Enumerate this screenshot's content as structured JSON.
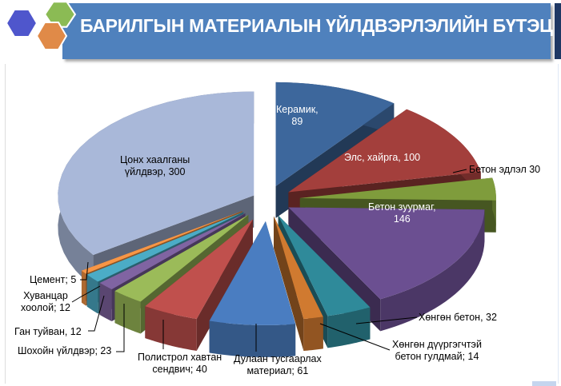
{
  "header": {
    "title": "БАРИЛГЫН МАТЕРИАЛЫН ҮЙЛДВЭРЛЭЛИЙН БҮТЭЦ"
  },
  "chart_data": {
    "type": "pie",
    "style": "3d-exploded",
    "title": "",
    "slices": [
      {
        "name": "Керамик",
        "value": 89,
        "label": "Керамик,",
        "value_label": "89",
        "color": "#3d679c"
      },
      {
        "name": "Элс, хайрга",
        "value": 100,
        "label": "Элс, хайрга, 100",
        "color": "#a33f3c"
      },
      {
        "name": "Бетон эдлэл",
        "value": 30,
        "label": "Бетон эдлэл 30",
        "color": "#7f9c3c"
      },
      {
        "name": "Бетон зуурмаг",
        "value": 146,
        "label": "Бетон зуурмаг,",
        "value_label": "146",
        "color": "#6b4f91"
      },
      {
        "name": "Хөнгөн бетон",
        "value": 32,
        "label": "Хөнгөн бетон, 32",
        "color": "#2f8a9a"
      },
      {
        "name": "Хөнгөн дүүргэгчтэй бетон гулдмай",
        "value": 14,
        "label": "Хөнгөн дүүргэгчтэй",
        "value_label": "бетон гулдмай; 14",
        "color": "#d07a30"
      },
      {
        "name": "Дулаан тусгаарлах материал",
        "value": 61,
        "label": "Дулаан тусгаарлах",
        "value_label": "материал; 61",
        "color": "#4a7dc1"
      },
      {
        "name": "Полистрол хавтан сендвич",
        "value": 40,
        "label": "Полистрол хавтан",
        "value_label": "сендвич; 40",
        "color": "#c0504d"
      },
      {
        "name": "Шохойн үйлдвэр",
        "value": 23,
        "label": "Шохойн үйлдвэр; 23",
        "color": "#9bbb59"
      },
      {
        "name": "Ган туйван",
        "value": 12,
        "label": "Ган туйван, 12",
        "color": "#8064a2"
      },
      {
        "name": "Хуванцар хоолой",
        "value": 12,
        "label": "Хуванцар",
        "value_label": "хоолой; 12",
        "color": "#4bacc6"
      },
      {
        "name": "Цемент",
        "value": 5,
        "label": "Цемент; 5",
        "color": "#f79646"
      },
      {
        "name": "Цонх хаалганы үйлдвэр",
        "value": 300,
        "label": "Цонх хаалганы",
        "value_label": "үйлдвэр, 300",
        "color": "#a9b8d9"
      }
    ]
  }
}
